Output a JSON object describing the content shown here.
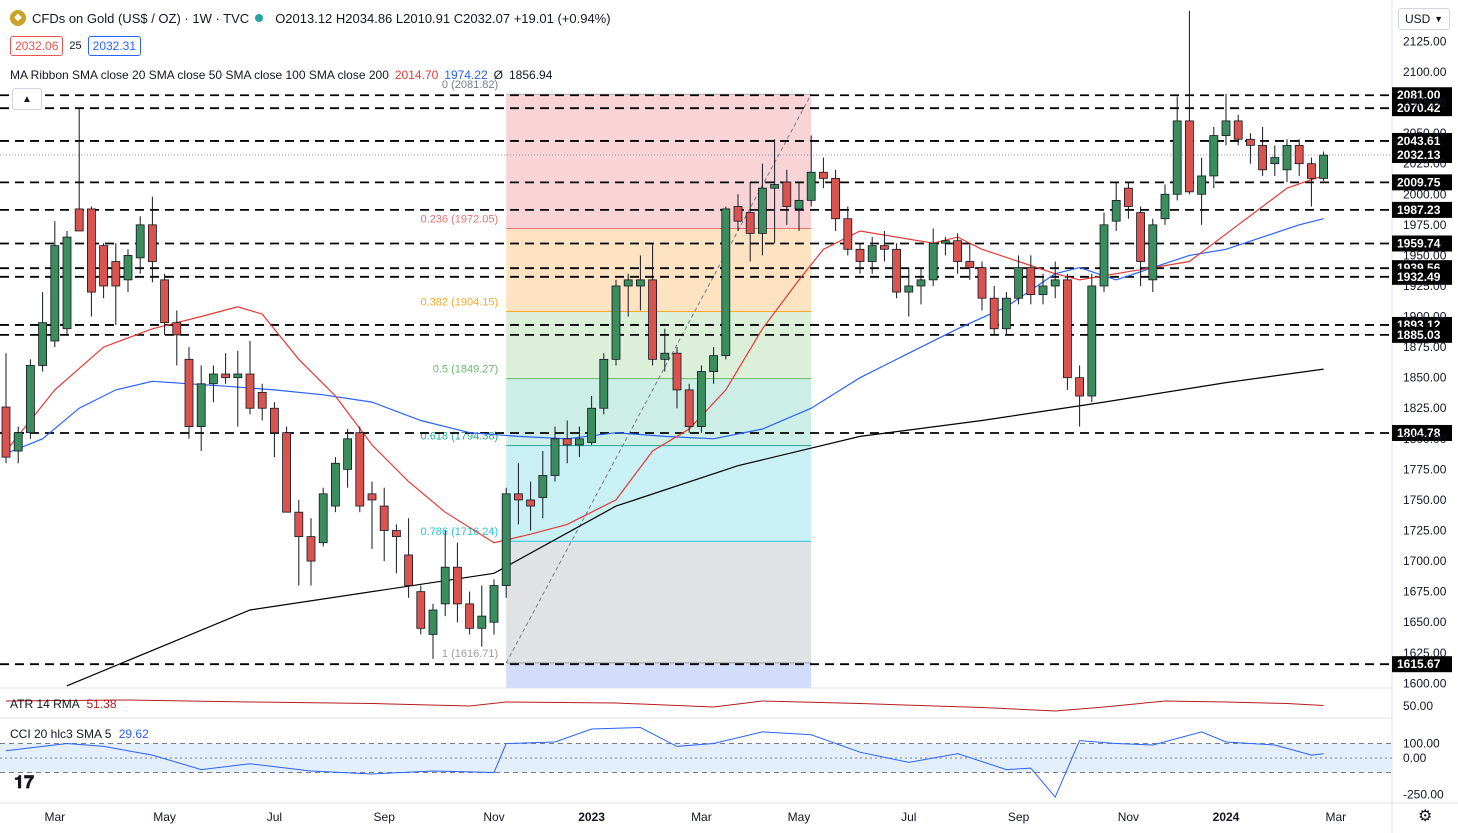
{
  "header": {
    "title": "CFDs on Gold (US$ / OZ) · 1W · TVC",
    "ohlc": "O2013.12 H2034.86 L2010.91 C2032.07 +19.01 (+0.94%)",
    "bid": "2032.06",
    "spread": "25",
    "ask": "2032.31",
    "ma_label": "MA Ribbon SMA close 20 SMA close 50 SMA close 100 SMA close 200",
    "ma_v1": "2014.70",
    "ma_v2": "1974.22",
    "ma_v3": "Ø",
    "ma_v4": "1856.94",
    "currency": "USD"
  },
  "colors": {
    "up": "#26a69a",
    "down": "#ef5350",
    "upBody": "#3b8d5e",
    "downBody": "#d9534f",
    "sma20": "#e53935",
    "sma50": "#2962ff",
    "sma200": "#000000",
    "atr": "#b71c1c",
    "cci": "#2962ff"
  },
  "chart_data": {
    "type": "candlestick",
    "price_axis_ticks": [
      "2125.00",
      "2100.00",
      "2075.00",
      "2050.00",
      "2025.00",
      "2000.00",
      "1975.00",
      "1950.00",
      "1925.00",
      "1900.00",
      "1875.00",
      "1850.00",
      "1825.00",
      "1800.00",
      "1775.00",
      "1750.00",
      "1725.00",
      "1700.00",
      "1675.00",
      "1650.00",
      "1625.00",
      "1600.00"
    ],
    "time_axis_ticks": [
      {
        "label": "Mar",
        "bar": 4
      },
      {
        "label": "May",
        "bar": 13
      },
      {
        "label": "Jul",
        "bar": 22
      },
      {
        "label": "Sep",
        "bar": 31
      },
      {
        "label": "Nov",
        "bar": 40
      },
      {
        "label": "2023",
        "bar": 48
      },
      {
        "label": "Mar",
        "bar": 57
      },
      {
        "label": "May",
        "bar": 65
      },
      {
        "label": "Jul",
        "bar": 74
      },
      {
        "label": "Sep",
        "bar": 83
      },
      {
        "label": "Nov",
        "bar": 92
      },
      {
        "label": "2024",
        "bar": 100
      },
      {
        "label": "Mar",
        "bar": 109
      }
    ],
    "candles": [
      {
        "o": 1826,
        "h": 1870,
        "l": 1780,
        "c": 1785
      },
      {
        "o": 1790,
        "h": 1810,
        "l": 1780,
        "c": 1805
      },
      {
        "o": 1805,
        "h": 1865,
        "l": 1800,
        "c": 1860
      },
      {
        "o": 1860,
        "h": 1920,
        "l": 1855,
        "c": 1895
      },
      {
        "o": 1880,
        "h": 1978,
        "l": 1875,
        "c": 1958
      },
      {
        "o": 1890,
        "h": 1970,
        "l": 1885,
        "c": 1965
      },
      {
        "o": 1988,
        "h": 2070,
        "l": 1970,
        "c": 1970
      },
      {
        "o": 1988,
        "h": 1990,
        "l": 1900,
        "c": 1920
      },
      {
        "o": 1958,
        "h": 1960,
        "l": 1915,
        "c": 1925
      },
      {
        "o": 1945,
        "h": 1960,
        "l": 1893,
        "c": 1925
      },
      {
        "o": 1930,
        "h": 1955,
        "l": 1920,
        "c": 1950
      },
      {
        "o": 1948,
        "h": 1982,
        "l": 1935,
        "c": 1975
      },
      {
        "o": 1975,
        "h": 1998,
        "l": 1928,
        "c": 1945
      },
      {
        "o": 1930,
        "h": 1935,
        "l": 1885,
        "c": 1895
      },
      {
        "o": 1895,
        "h": 1905,
        "l": 1860,
        "c": 1885
      },
      {
        "o": 1865,
        "h": 1875,
        "l": 1800,
        "c": 1810
      },
      {
        "o": 1810,
        "h": 1860,
        "l": 1790,
        "c": 1845
      },
      {
        "o": 1845,
        "h": 1860,
        "l": 1830,
        "c": 1853
      },
      {
        "o": 1853,
        "h": 1870,
        "l": 1845,
        "c": 1850
      },
      {
        "o": 1850,
        "h": 1872,
        "l": 1810,
        "c": 1853
      },
      {
        "o": 1853,
        "h": 1880,
        "l": 1820,
        "c": 1825
      },
      {
        "o": 1838,
        "h": 1845,
        "l": 1815,
        "c": 1825
      },
      {
        "o": 1825,
        "h": 1830,
        "l": 1785,
        "c": 1805
      },
      {
        "o": 1805,
        "h": 1810,
        "l": 1740,
        "c": 1740
      },
      {
        "o": 1740,
        "h": 1750,
        "l": 1680,
        "c": 1720
      },
      {
        "o": 1720,
        "h": 1735,
        "l": 1680,
        "c": 1700
      },
      {
        "o": 1715,
        "h": 1760,
        "l": 1712,
        "c": 1755
      },
      {
        "o": 1745,
        "h": 1785,
        "l": 1740,
        "c": 1780
      },
      {
        "o": 1775,
        "h": 1808,
        "l": 1760,
        "c": 1800
      },
      {
        "o": 1805,
        "h": 1810,
        "l": 1740,
        "c": 1745
      },
      {
        "o": 1755,
        "h": 1765,
        "l": 1710,
        "c": 1750
      },
      {
        "o": 1745,
        "h": 1760,
        "l": 1700,
        "c": 1725
      },
      {
        "o": 1725,
        "h": 1730,
        "l": 1690,
        "c": 1720
      },
      {
        "o": 1705,
        "h": 1735,
        "l": 1670,
        "c": 1680
      },
      {
        "o": 1675,
        "h": 1680,
        "l": 1640,
        "c": 1645
      },
      {
        "o": 1640,
        "h": 1665,
        "l": 1620,
        "c": 1660
      },
      {
        "o": 1665,
        "h": 1725,
        "l": 1655,
        "c": 1695
      },
      {
        "o": 1695,
        "h": 1715,
        "l": 1650,
        "c": 1665
      },
      {
        "o": 1665,
        "h": 1675,
        "l": 1640,
        "c": 1645
      },
      {
        "o": 1645,
        "h": 1680,
        "l": 1630,
        "c": 1655
      },
      {
        "o": 1650,
        "h": 1685,
        "l": 1640,
        "c": 1680
      },
      {
        "o": 1680,
        "h": 1760,
        "l": 1670,
        "c": 1755
      },
      {
        "o": 1755,
        "h": 1780,
        "l": 1730,
        "c": 1750
      },
      {
        "o": 1750,
        "h": 1765,
        "l": 1725,
        "c": 1745
      },
      {
        "o": 1752,
        "h": 1790,
        "l": 1735,
        "c": 1770
      },
      {
        "o": 1770,
        "h": 1810,
        "l": 1765,
        "c": 1800
      },
      {
        "o": 1800,
        "h": 1815,
        "l": 1780,
        "c": 1795
      },
      {
        "o": 1795,
        "h": 1810,
        "l": 1785,
        "c": 1800
      },
      {
        "o": 1797,
        "h": 1835,
        "l": 1795,
        "c": 1825
      },
      {
        "o": 1825,
        "h": 1870,
        "l": 1820,
        "c": 1865
      },
      {
        "o": 1865,
        "h": 1930,
        "l": 1860,
        "c": 1925
      },
      {
        "o": 1925,
        "h": 1935,
        "l": 1900,
        "c": 1930
      },
      {
        "o": 1925,
        "h": 1950,
        "l": 1905,
        "c": 1930
      },
      {
        "o": 1930,
        "h": 1960,
        "l": 1860,
        "c": 1865
      },
      {
        "o": 1865,
        "h": 1890,
        "l": 1855,
        "c": 1870
      },
      {
        "o": 1870,
        "h": 1875,
        "l": 1825,
        "c": 1840
      },
      {
        "o": 1840,
        "h": 1845,
        "l": 1805,
        "c": 1810
      },
      {
        "o": 1810,
        "h": 1860,
        "l": 1805,
        "c": 1855
      },
      {
        "o": 1855,
        "h": 1875,
        "l": 1845,
        "c": 1868
      },
      {
        "o": 1868,
        "h": 1990,
        "l": 1865,
        "c": 1988
      },
      {
        "o": 1990,
        "h": 2000,
        "l": 1970,
        "c": 1978
      },
      {
        "o": 1985,
        "h": 2010,
        "l": 1945,
        "c": 1968
      },
      {
        "o": 1968,
        "h": 2025,
        "l": 1950,
        "c": 2005
      },
      {
        "o": 2005,
        "h": 2045,
        "l": 1960,
        "c": 2008
      },
      {
        "o": 2010,
        "h": 2020,
        "l": 1975,
        "c": 1990
      },
      {
        "o": 1988,
        "h": 2010,
        "l": 1970,
        "c": 1995
      },
      {
        "o": 1995,
        "h": 2048,
        "l": 1990,
        "c": 2018
      },
      {
        "o": 2018,
        "h": 2030,
        "l": 2005,
        "c": 2013
      },
      {
        "o": 2013,
        "h": 2020,
        "l": 1970,
        "c": 1980
      },
      {
        "o": 1980,
        "h": 1990,
        "l": 1950,
        "c": 1955
      },
      {
        "o": 1955,
        "h": 1960,
        "l": 1935,
        "c": 1945
      },
      {
        "o": 1945,
        "h": 1965,
        "l": 1935,
        "c": 1958
      },
      {
        "o": 1958,
        "h": 1970,
        "l": 1945,
        "c": 1955
      },
      {
        "o": 1955,
        "h": 1960,
        "l": 1915,
        "c": 1920
      },
      {
        "o": 1920,
        "h": 1940,
        "l": 1900,
        "c": 1925
      },
      {
        "o": 1925,
        "h": 1940,
        "l": 1910,
        "c": 1930
      },
      {
        "o": 1930,
        "h": 1972,
        "l": 1925,
        "c": 1960
      },
      {
        "o": 1960,
        "h": 1965,
        "l": 1950,
        "c": 1962
      },
      {
        "o": 1962,
        "h": 1968,
        "l": 1935,
        "c": 1945
      },
      {
        "o": 1945,
        "h": 1960,
        "l": 1930,
        "c": 1940
      },
      {
        "o": 1940,
        "h": 1945,
        "l": 1905,
        "c": 1915
      },
      {
        "o": 1915,
        "h": 1925,
        "l": 1885,
        "c": 1890
      },
      {
        "o": 1890,
        "h": 1920,
        "l": 1885,
        "c": 1915
      },
      {
        "o": 1915,
        "h": 1950,
        "l": 1910,
        "c": 1940
      },
      {
        "o": 1940,
        "h": 1950,
        "l": 1910,
        "c": 1918
      },
      {
        "o": 1918,
        "h": 1935,
        "l": 1910,
        "c": 1925
      },
      {
        "o": 1925,
        "h": 1945,
        "l": 1915,
        "c": 1930
      },
      {
        "o": 1930,
        "h": 1935,
        "l": 1840,
        "c": 1850
      },
      {
        "o": 1850,
        "h": 1860,
        "l": 1810,
        "c": 1835
      },
      {
        "o": 1835,
        "h": 1935,
        "l": 1830,
        "c": 1925
      },
      {
        "o": 1925,
        "h": 1985,
        "l": 1920,
        "c": 1975
      },
      {
        "o": 1978,
        "h": 2010,
        "l": 1970,
        "c": 1995
      },
      {
        "o": 2005,
        "h": 2010,
        "l": 1980,
        "c": 1990
      },
      {
        "o": 1985,
        "h": 1990,
        "l": 1925,
        "c": 1945
      },
      {
        "o": 1930,
        "h": 1980,
        "l": 1920,
        "c": 1975
      },
      {
        "o": 1980,
        "h": 2008,
        "l": 1975,
        "c": 2000
      },
      {
        "o": 2000,
        "h": 2080,
        "l": 1995,
        "c": 2060
      },
      {
        "o": 2060,
        "h": 2150,
        "l": 2000,
        "c": 2002
      },
      {
        "o": 2000,
        "h": 2030,
        "l": 1975,
        "c": 2015
      },
      {
        "o": 2015,
        "h": 2055,
        "l": 2005,
        "c": 2048
      },
      {
        "o": 2048,
        "h": 2082,
        "l": 2040,
        "c": 2060
      },
      {
        "o": 2060,
        "h": 2065,
        "l": 2040,
        "c": 2045
      },
      {
        "o": 2045,
        "h": 2050,
        "l": 2025,
        "c": 2040
      },
      {
        "o": 2040,
        "h": 2055,
        "l": 2015,
        "c": 2020
      },
      {
        "o": 2025,
        "h": 2040,
        "l": 2015,
        "c": 2030
      },
      {
        "o": 2020,
        "h": 2045,
        "l": 2010,
        "c": 2040
      },
      {
        "o": 2040,
        "h": 2045,
        "l": 2015,
        "c": 2025
      },
      {
        "o": 2025,
        "h": 2030,
        "l": 1990,
        "c": 2013
      },
      {
        "o": 2013,
        "h": 2035,
        "l": 2011,
        "c": 2032
      }
    ],
    "sma200": [
      [
        5,
        1598
      ],
      [
        20,
        1660
      ],
      [
        40,
        1690
      ],
      [
        50,
        1745
      ],
      [
        60,
        1778
      ],
      [
        70,
        1802
      ],
      [
        80,
        1815
      ],
      [
        90,
        1830
      ],
      [
        100,
        1846
      ],
      [
        108,
        1857
      ]
    ],
    "sma50": [
      [
        0,
        1788
      ],
      [
        3,
        1800
      ],
      [
        6,
        1825
      ],
      [
        9,
        1840
      ],
      [
        12,
        1847
      ],
      [
        15,
        1845
      ],
      [
        18,
        1843
      ],
      [
        22,
        1840
      ],
      [
        26,
        1836
      ],
      [
        30,
        1830
      ],
      [
        34,
        1815
      ],
      [
        38,
        1805
      ],
      [
        42,
        1802
      ],
      [
        46,
        1800
      ],
      [
        50,
        1805
      ],
      [
        54,
        1802
      ],
      [
        58,
        1800
      ],
      [
        62,
        1808
      ],
      [
        66,
        1825
      ],
      [
        70,
        1850
      ],
      [
        74,
        1870
      ],
      [
        78,
        1890
      ],
      [
        82,
        1908
      ],
      [
        86,
        1935
      ],
      [
        88,
        1940
      ],
      [
        91,
        1930
      ],
      [
        94,
        1940
      ],
      [
        97,
        1950
      ],
      [
        100,
        1955
      ],
      [
        103,
        1965
      ],
      [
        106,
        1975
      ],
      [
        108,
        1980
      ]
    ],
    "sma20": [
      [
        0,
        1790
      ],
      [
        4,
        1840
      ],
      [
        8,
        1875
      ],
      [
        12,
        1890
      ],
      [
        16,
        1900
      ],
      [
        19,
        1908
      ],
      [
        21,
        1902
      ],
      [
        24,
        1865
      ],
      [
        27,
        1835
      ],
      [
        30,
        1795
      ],
      [
        33,
        1765
      ],
      [
        36,
        1740
      ],
      [
        40,
        1715
      ],
      [
        43,
        1722
      ],
      [
        46,
        1730
      ],
      [
        50,
        1750
      ],
      [
        53,
        1790
      ],
      [
        56,
        1808
      ],
      [
        59,
        1840
      ],
      [
        62,
        1890
      ],
      [
        65,
        1930
      ],
      [
        67,
        1955
      ],
      [
        70,
        1970
      ],
      [
        73,
        1965
      ],
      [
        76,
        1960
      ],
      [
        78,
        1965
      ],
      [
        80,
        1955
      ],
      [
        83,
        1945
      ],
      [
        86,
        1935
      ],
      [
        88,
        1930
      ],
      [
        91,
        1935
      ],
      [
        94,
        1940
      ],
      [
        97,
        1945
      ],
      [
        99,
        1960
      ],
      [
        101,
        1975
      ],
      [
        103,
        1990
      ],
      [
        105,
        2005
      ],
      [
        107,
        2012
      ],
      [
        108,
        2015
      ]
    ],
    "horizontal_levels": [
      "2081.00",
      "2070.42",
      "2043.61",
      "2032.13",
      "2009.75",
      "1987.23",
      "1959.74",
      "1939.56",
      "1932.49",
      "1893.12",
      "1885.03",
      "1804.78",
      "1615.67"
    ],
    "fibonacci": {
      "start_bar": 41,
      "end_bar": 66,
      "high": 2081.82,
      "low": 1616.71,
      "levels": [
        {
          "ratio": 0,
          "label": "0 (2081.82)"
        },
        {
          "ratio": 0.236,
          "label": "0.236 (1972.05)"
        },
        {
          "ratio": 0.382,
          "label": "0.382 (1904.15)"
        },
        {
          "ratio": 0.5,
          "label": "0.5 (1849.27)"
        },
        {
          "ratio": 0.618,
          "label": "0.618 (1794.38)"
        },
        {
          "ratio": 0.786,
          "label": "0.786 (1716.24)"
        },
        {
          "ratio": 1,
          "label": "1 (1616.71)"
        }
      ],
      "zone_colors": [
        "#f8d4d7",
        "#fde3c2",
        "#dcefd9",
        "#cdeee6",
        "#c9f0f4",
        "#e0e2e6",
        "#d3dcfb"
      ],
      "line_colors": [
        "#b0b0b0",
        "#e57373",
        "#ffa726",
        "#66bb6a",
        "#26a69a",
        "#26c6da",
        "#9e9e9e",
        "#3f51b5"
      ]
    }
  },
  "atr": {
    "label": "ATR 14 RMA",
    "value": "51.38",
    "ticks": [
      "50.00"
    ],
    "series": [
      [
        0,
        60
      ],
      [
        10,
        62
      ],
      [
        20,
        58
      ],
      [
        30,
        55
      ],
      [
        38,
        50
      ],
      [
        41,
        58
      ],
      [
        50,
        56
      ],
      [
        58,
        48
      ],
      [
        62,
        60
      ],
      [
        70,
        55
      ],
      [
        80,
        47
      ],
      [
        86,
        40
      ],
      [
        90,
        48
      ],
      [
        95,
        60
      ],
      [
        100,
        58
      ],
      [
        105,
        55
      ],
      [
        108,
        51
      ]
    ]
  },
  "cci": {
    "label": "CCI 20 hlc3 SMA 5",
    "value": "29.62",
    "ticks": [
      "100.00",
      "0.00",
      "-250.00"
    ],
    "series": [
      [
        0,
        50
      ],
      [
        5,
        100
      ],
      [
        8,
        80
      ],
      [
        12,
        20
      ],
      [
        16,
        -80
      ],
      [
        20,
        -40
      ],
      [
        25,
        -90
      ],
      [
        30,
        -110
      ],
      [
        35,
        -90
      ],
      [
        40,
        -100
      ],
      [
        41,
        100
      ],
      [
        45,
        110
      ],
      [
        48,
        200
      ],
      [
        52,
        210
      ],
      [
        55,
        80
      ],
      [
        58,
        100
      ],
      [
        62,
        180
      ],
      [
        66,
        160
      ],
      [
        70,
        40
      ],
      [
        74,
        -30
      ],
      [
        78,
        30
      ],
      [
        82,
        -80
      ],
      [
        84,
        -70
      ],
      [
        86,
        -270
      ],
      [
        88,
        120
      ],
      [
        91,
        100
      ],
      [
        94,
        90
      ],
      [
        98,
        180
      ],
      [
        100,
        110
      ],
      [
        104,
        90
      ],
      [
        107,
        20
      ],
      [
        108,
        29
      ]
    ]
  }
}
